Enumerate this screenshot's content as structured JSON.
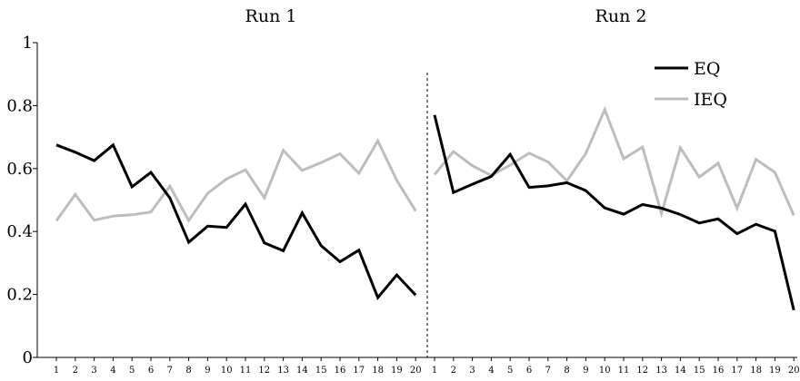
{
  "chart_data": {
    "type": "line",
    "panels": [
      {
        "title": "Run 1",
        "x": [
          1,
          2,
          3,
          4,
          5,
          6,
          7,
          8,
          9,
          10,
          11,
          12,
          13,
          14,
          15,
          16,
          17,
          18,
          19,
          20
        ],
        "series": [
          {
            "name": "EQ",
            "color": "#000000",
            "values": [
              0.675,
              0.652,
              0.625,
              0.675,
              0.542,
              0.588,
              0.507,
              0.366,
              0.417,
              0.413,
              0.487,
              0.364,
              0.339,
              0.459,
              0.355,
              0.304,
              0.341,
              0.19,
              0.262,
              0.198
            ]
          },
          {
            "name": "IEQ",
            "color": "#bdbdbd",
            "values": [
              0.434,
              0.518,
              0.436,
              0.449,
              0.453,
              0.462,
              0.544,
              0.435,
              0.521,
              0.567,
              0.596,
              0.507,
              0.658,
              0.594,
              0.619,
              0.647,
              0.585,
              0.688,
              0.563,
              0.465
            ]
          }
        ]
      },
      {
        "title": "Run 2",
        "x": [
          1,
          2,
          3,
          4,
          5,
          6,
          7,
          8,
          9,
          10,
          11,
          12,
          13,
          14,
          15,
          16,
          17,
          18,
          19,
          20
        ],
        "series": [
          {
            "name": "EQ",
            "color": "#000000",
            "values": [
              0.77,
              0.524,
              0.55,
              0.575,
              0.645,
              0.54,
              0.545,
              0.555,
              0.53,
              0.475,
              0.455,
              0.486,
              0.474,
              0.454,
              0.427,
              0.44,
              0.393,
              0.423,
              0.401,
              0.15
            ]
          },
          {
            "name": "IEQ",
            "color": "#bdbdbd",
            "values": [
              0.581,
              0.654,
              0.609,
              0.578,
              0.611,
              0.649,
              0.621,
              0.561,
              0.648,
              0.787,
              0.631,
              0.668,
              0.457,
              0.666,
              0.573,
              0.617,
              0.474,
              0.629,
              0.588,
              0.451
            ]
          }
        ]
      }
    ],
    "ylim": [
      0,
      1
    ],
    "yticks": [
      "0",
      "0.2",
      "0.4",
      "0.6",
      "0.8",
      "1"
    ],
    "legend": {
      "placement": "top-right",
      "entries": [
        {
          "label": "EQ",
          "color": "#000000"
        },
        {
          "label": "IEQ",
          "color": "#bdbdbd"
        }
      ]
    },
    "grid": false,
    "divider": "dashed"
  }
}
